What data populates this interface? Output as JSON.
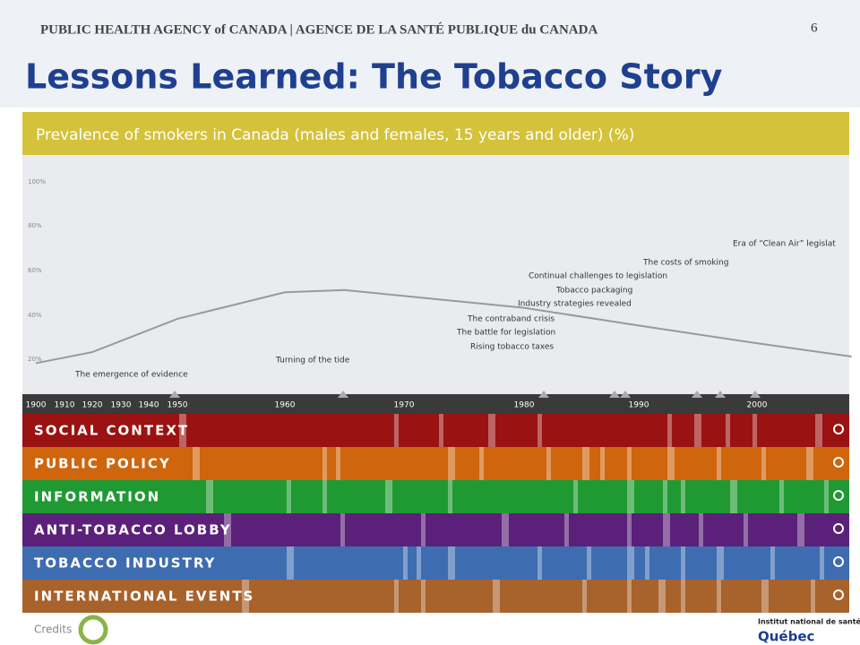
{
  "header": {
    "agency": "PUBLIC HEALTH AGENCY of CANADA | AGENCE DE LA SANTÉ PUBLIQUE du CANADA",
    "page_number": "6"
  },
  "title": "Lessons Learned: The Tobacco Story",
  "graphic": {
    "title": "Prevalence of smokers in Canada (males and females, 15 years and older) (%)",
    "yticks": [
      "100%",
      "80%",
      "60%",
      "40%",
      "20%"
    ],
    "years": [
      1900,
      1910,
      1920,
      1930,
      1940,
      1950,
      1960,
      1970,
      1980,
      1990,
      2000
    ],
    "line": {
      "x": [
        1900,
        1920,
        1950,
        1960,
        1965,
        1980,
        1990,
        2000,
        2008
      ],
      "values": [
        18,
        23,
        38,
        50,
        51,
        43,
        35,
        27,
        21
      ]
    },
    "annotations": [
      "The emergence of evidence",
      "Turning of the tide",
      "Rising tobacco taxes",
      "The battle for legislation",
      "The contraband crisis",
      "Industry strategies revealed",
      "Tobacco packaging",
      "Continual challenges to legislation",
      "The costs of smoking",
      "Era of “Clean Air” legislat"
    ],
    "bands": [
      {
        "label": "SOCIAL CONTEXT",
        "color": "#9b1212"
      },
      {
        "label": "PUBLIC POLICY",
        "color": "#cf650c"
      },
      {
        "label": "INFORMATION",
        "color": "#1f9a32"
      },
      {
        "label": "ANTI-TOBACCO LOBBY",
        "color": "#5b2079"
      },
      {
        "label": "TOBACCO INDUSTRY",
        "color": "#3e6cb1"
      },
      {
        "label": "INTERNATIONAL EVENTS",
        "color": "#a8622b"
      }
    ]
  },
  "footer": {
    "credits": "Credits",
    "institute": "Institut national de santé publique",
    "province": "Québec"
  }
}
